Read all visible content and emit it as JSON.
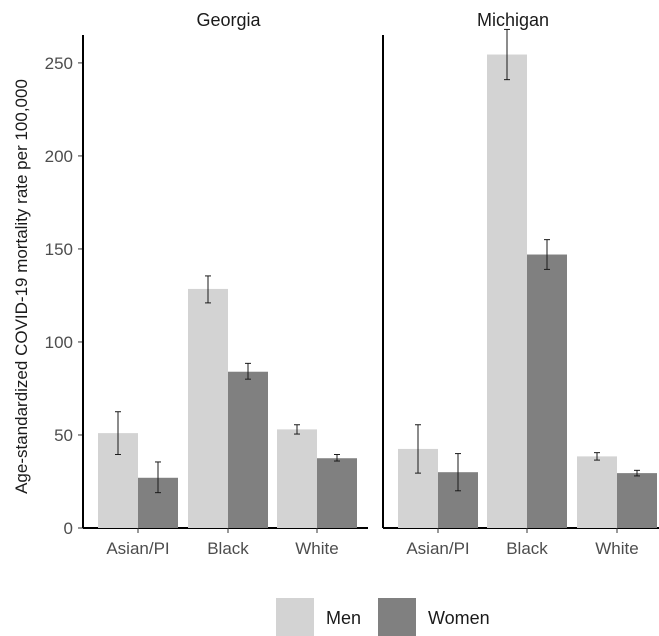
{
  "chart_data": {
    "type": "bar",
    "ylabel": "Age-standardized COVID-19 mortality rate per 100,000",
    "xlabel": "",
    "ylim": [
      0,
      265
    ],
    "yticks": [
      0,
      50,
      100,
      150,
      200,
      250
    ],
    "categories": [
      "Asian/PI",
      "Black",
      "White"
    ],
    "grid": false,
    "legend_position": "bottom",
    "series_colors": {
      "Men": "#d3d3d3",
      "Women": "#808080"
    },
    "facets": [
      {
        "title": "Georgia",
        "series": [
          {
            "name": "Men",
            "values": [
              51,
              128.5,
              53
            ],
            "ci_low": [
              39.5,
              121,
              50.5
            ],
            "ci_high": [
              62.5,
              135.5,
              55.5
            ]
          },
          {
            "name": "Women",
            "values": [
              27,
              84,
              37.5
            ],
            "ci_low": [
              19,
              80,
              36
            ],
            "ci_high": [
              35.5,
              88.5,
              39.5
            ]
          }
        ]
      },
      {
        "title": "Michigan",
        "series": [
          {
            "name": "Men",
            "values": [
              42.5,
              254.5,
              38.5
            ],
            "ci_low": [
              29.5,
              241,
              36.5
            ],
            "ci_high": [
              55.5,
              268,
              40.5
            ]
          },
          {
            "name": "Women",
            "values": [
              30,
              147,
              29.5
            ],
            "ci_low": [
              20,
              139,
              28
            ],
            "ci_high": [
              40,
              155,
              31
            ]
          }
        ]
      }
    ]
  }
}
